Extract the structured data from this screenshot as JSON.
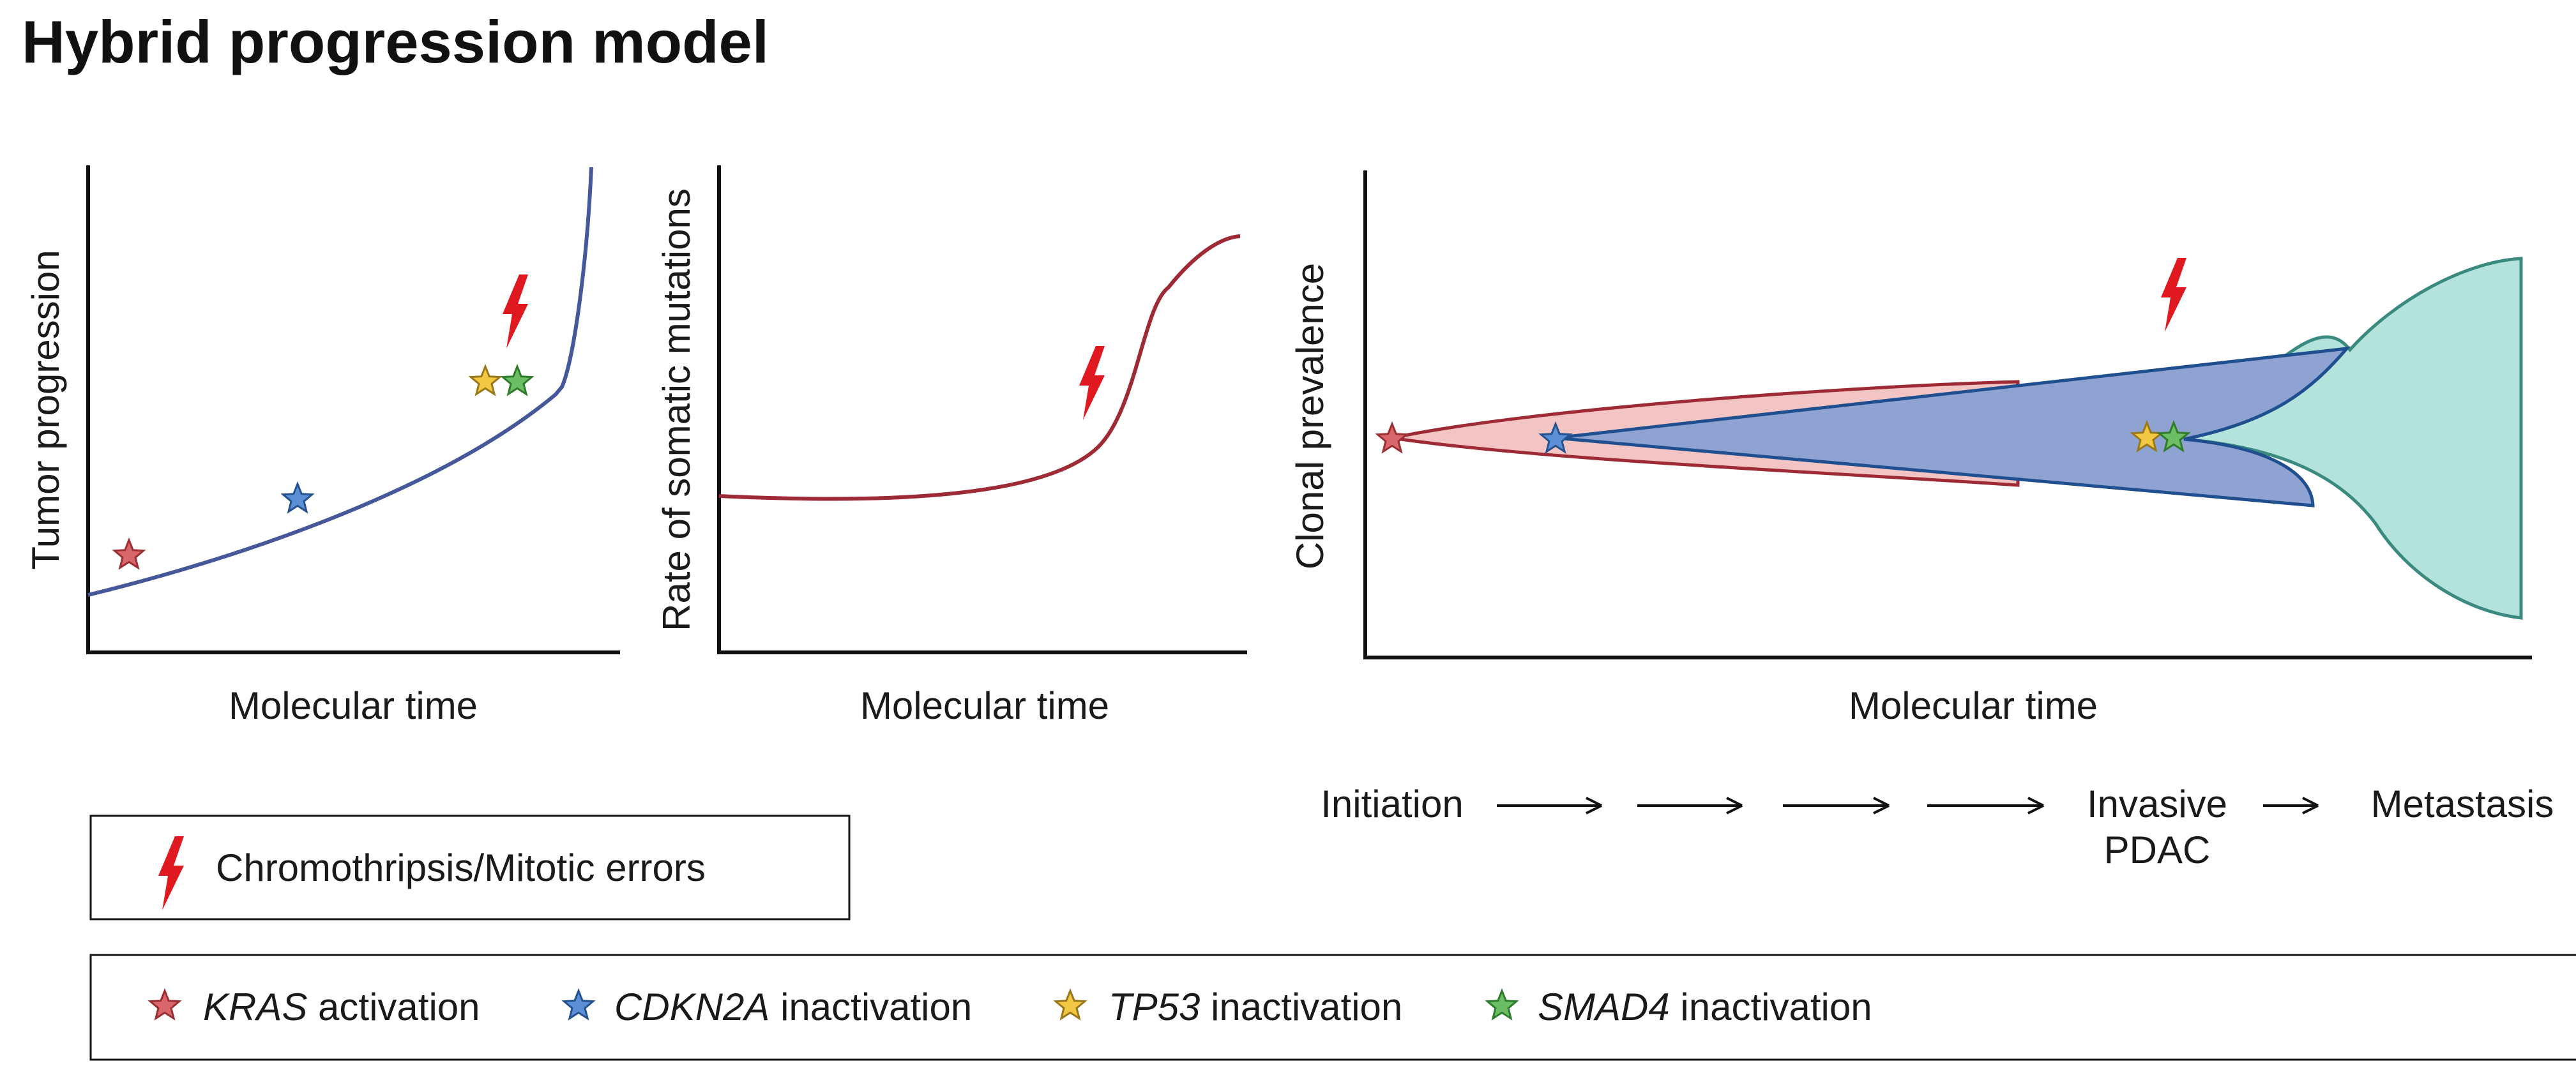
{
  "title": "Hybrid progression model",
  "panels": {
    "tumor": {
      "ylabel": "Tumor progression",
      "xlabel": "Molecular time"
    },
    "rate": {
      "ylabel": "Rate of somatic mutations",
      "xlabel": "Molecular time"
    },
    "clonal": {
      "ylabel": "Clonal prevalence",
      "xlabel": "Molecular time"
    }
  },
  "stages": {
    "initiation": "Initiation",
    "invasive_line1": "Invasive",
    "invasive_line2": "PDAC",
    "metastasis": "Metastasis"
  },
  "legend": {
    "chromothripsis": "Chromothripsis/Mitotic errors",
    "kras_gene": "KRAS",
    "kras_text": " activation",
    "cdkn2a_gene": "CDKN2A",
    "cdkn2a_text": " inactivation",
    "tp53_gene": "TP53",
    "tp53_text": " inactivation",
    "smad4_gene": "SMAD4",
    "smad4_text": " inactivation"
  },
  "colors": {
    "kras": "#d9666b",
    "cdkn2a": "#5b8fd6",
    "tp53": "#f2c744",
    "smad4": "#6dbd65",
    "bolt": "#e0181f",
    "curve_blue": "#46589a",
    "curve_red": "#9e2a35",
    "clone_red": "#f2c4c4",
    "clone_blue": "#8fa3d3",
    "clone_teal": "#b3e3da"
  },
  "icons": {
    "mutation_marker": "star-icon",
    "mitotic_error_marker": "lightning-bolt-icon"
  }
}
